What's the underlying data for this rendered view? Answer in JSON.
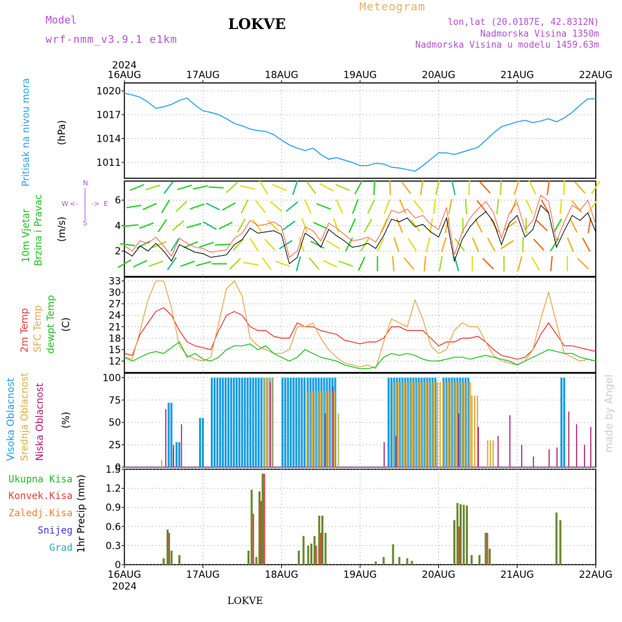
{
  "header": {
    "model_label": "Model",
    "model_name": "wrf-nmm_v3.9.1 e1km",
    "station": "LOKVE",
    "meteogram_label": "Meteogram",
    "coords": "lon,lat (20.0187E, 42.8312N)",
    "elevation": "Nadmorska Visina 1350m",
    "model_elevation": "Nadmorska Visina u modelu 1459.63m",
    "footer_station": "LOKVE",
    "watermark": "made by Angel"
  },
  "colors": {
    "pressure": "#2ba3e6",
    "wind_label": "#20c020",
    "temp_2m": "#e83a3a",
    "temp_sfc": "#e0aa50",
    "dewpoint": "#20c020",
    "cloud_high": "#1a9fe0",
    "cloud_mid": "#dcae44",
    "cloud_low": "#b0186e",
    "precip_total": "#6a8a30",
    "precip_conv": "#e83a3a",
    "snow": "#3a3ad0",
    "grad": "#20b0b0",
    "purple": "#b050d0"
  },
  "chart_data": [
    {
      "type": "line",
      "id": "pressure",
      "ylabel": "Pritisak na nivou mora",
      "unit": "(hPa)",
      "ylim": [
        1009,
        1021
      ],
      "yticks": [
        1011,
        1014,
        1017,
        1020
      ],
      "x_year_top": "2024",
      "x_year_bottom": "2024",
      "x_ticks": [
        "16AUG",
        "17AUG",
        "18AUG",
        "19AUG",
        "20AUG",
        "21AUG",
        "22AUG"
      ],
      "x_days": [
        0,
        6
      ],
      "grid": true,
      "x": [
        0,
        0.1,
        0.2,
        0.3,
        0.4,
        0.5,
        0.6,
        0.7,
        0.8,
        0.9,
        1.0,
        1.1,
        1.2,
        1.3,
        1.4,
        1.5,
        1.6,
        1.7,
        1.8,
        1.9,
        2.0,
        2.1,
        2.2,
        2.3,
        2.4,
        2.5,
        2.6,
        2.7,
        2.8,
        2.9,
        3.0,
        3.1,
        3.2,
        3.3,
        3.4,
        3.5,
        3.6,
        3.7,
        3.8,
        3.9,
        4.0,
        4.1,
        4.2,
        4.3,
        4.4,
        4.5,
        4.6,
        4.7,
        4.8,
        4.9,
        5.0,
        5.1,
        5.2,
        5.3,
        5.4,
        5.5,
        5.6,
        5.7,
        5.8,
        5.9,
        6.0
      ],
      "values": [
        1019.7,
        1019.5,
        1019.2,
        1018.6,
        1017.8,
        1018.0,
        1018.3,
        1018.8,
        1019.1,
        1018.2,
        1017.5,
        1017.3,
        1017.0,
        1016.5,
        1015.9,
        1015.6,
        1015.2,
        1015.0,
        1014.9,
        1014.5,
        1013.8,
        1013.2,
        1012.8,
        1012.5,
        1012.8,
        1012.0,
        1011.4,
        1011.6,
        1011.3,
        1011.0,
        1010.6,
        1010.6,
        1010.9,
        1010.8,
        1010.4,
        1010.3,
        1010.1,
        1009.9,
        1010.6,
        1011.4,
        1012.2,
        1012.2,
        1012.0,
        1012.3,
        1012.6,
        1012.9,
        1013.8,
        1014.7,
        1015.5,
        1015.8,
        1016.1,
        1016.3,
        1016.0,
        1016.2,
        1016.5,
        1016.1,
        1016.6,
        1017.3,
        1018.2,
        1019.0,
        1019.0
      ]
    },
    {
      "type": "line",
      "id": "wind",
      "ylabel": "10m Vjetar Brzina i Pravac",
      "unit": "(m/s)",
      "compass": {
        "n": "N",
        "s": "S",
        "e": "E",
        "w": "W"
      },
      "ylim": [
        0,
        7.5
      ],
      "yticks": [
        2,
        4,
        6
      ],
      "series": [
        {
          "name": "speed",
          "values": [
            2.0,
            1.6,
            2.4,
            2.0,
            2.6,
            2.0,
            1.2,
            2.5,
            2.2,
            1.9,
            1.8,
            1.5,
            1.6,
            1.7,
            2.5,
            2.9,
            3.8,
            3.4,
            3.5,
            3.6,
            3.3,
            1.0,
            1.5,
            3.4,
            3.0,
            2.3,
            3.7,
            3.2,
            2.8,
            2.3,
            2.4,
            2.6,
            2.2,
            3.2,
            4.5,
            4.3,
            4.6,
            3.9,
            4.1,
            3.5,
            3.1,
            4.6,
            1.2,
            2.9,
            3.9,
            4.6,
            5.1,
            4.3,
            2.5,
            4.2,
            4.8,
            3.1,
            3.7,
            5.6,
            5.0,
            2.3,
            3.6,
            4.8,
            4.4,
            5.0,
            3.5
          ]
        },
        {
          "name": "gust",
          "values": [
            2.4,
            2.0,
            2.8,
            2.6,
            3.1,
            2.4,
            1.6,
            3.0,
            2.6,
            2.3,
            2.2,
            1.9,
            2.0,
            2.1,
            3.0,
            3.4,
            4.4,
            4.0,
            4.1,
            4.3,
            3.9,
            1.5,
            2.0,
            3.9,
            3.6,
            2.8,
            4.2,
            3.8,
            3.3,
            2.8,
            2.9,
            3.1,
            2.7,
            3.8,
            5.2,
            5.0,
            5.3,
            4.6,
            4.8,
            4.1,
            3.7,
            5.4,
            1.7,
            3.5,
            4.6,
            5.3,
            5.9,
            5.0,
            3.0,
            5.0,
            5.8,
            3.7,
            4.4,
            6.4,
            5.9,
            2.8,
            4.3,
            5.6,
            5.2,
            6.0,
            4.1
          ]
        }
      ],
      "direction_deg": [
        260,
        250,
        240,
        250,
        260,
        230,
        200,
        220,
        250,
        260,
        270,
        280,
        260,
        240,
        230,
        220,
        300,
        310,
        320,
        315,
        300,
        250,
        180,
        330,
        320,
        300,
        310,
        320,
        280,
        200,
        210,
        220,
        200,
        190,
        170,
        160,
        150,
        160,
        170,
        180,
        190,
        200,
        180,
        160,
        170,
        150,
        140,
        160,
        200,
        220,
        190,
        180,
        160,
        150,
        170,
        200,
        180,
        160,
        150,
        170,
        200
      ]
    },
    {
      "type": "line",
      "id": "temperature",
      "ylabels": [
        "2m Temp",
        "SFC Temp",
        "dewpt Temp"
      ],
      "unit": "(C)",
      "ylim": [
        9,
        34
      ],
      "yticks": [
        12,
        15,
        18,
        21,
        24,
        27,
        30,
        33
      ],
      "series": [
        {
          "name": "2m Temp",
          "values": [
            14,
            13.5,
            19,
            22,
            25,
            26,
            24,
            20,
            17,
            16,
            15.5,
            15,
            20,
            24,
            25,
            24,
            21,
            20,
            20,
            18.5,
            18,
            18,
            22,
            21,
            21,
            20,
            19.5,
            19,
            17.5,
            17,
            16.5,
            17,
            17,
            18,
            21,
            21,
            20,
            20,
            20,
            18,
            16,
            17,
            17,
            18,
            18,
            18.5,
            17,
            15,
            13.5,
            13,
            12.5,
            13,
            15,
            19,
            22,
            19,
            16,
            16,
            15.5,
            15,
            14.5
          ]
        },
        {
          "name": "SFC Temp",
          "values": [
            13,
            12.5,
            20,
            28,
            33,
            33,
            26,
            16,
            13.5,
            12.5,
            12,
            13,
            22,
            31,
            33,
            29,
            18,
            16,
            15,
            14,
            14,
            15,
            21,
            21,
            22,
            18,
            15,
            13,
            11.5,
            11,
            10.5,
            11,
            10,
            17,
            23,
            22,
            21,
            28,
            23,
            16,
            14,
            15,
            20,
            22,
            21,
            21,
            17,
            13.5,
            12,
            11.5,
            11,
            12,
            15,
            23,
            30,
            22,
            14,
            13,
            12,
            12.5,
            12
          ]
        },
        {
          "name": "dewpt Temp",
          "values": [
            13,
            12,
            13,
            14,
            14.5,
            14,
            15.5,
            17,
            13,
            14,
            12.5,
            12,
            13,
            15,
            16,
            16,
            16.5,
            15,
            16,
            14,
            13,
            12,
            13,
            15,
            14,
            13,
            12.5,
            12,
            11,
            10.5,
            10,
            10,
            10.5,
            13,
            14,
            13.5,
            14,
            13.5,
            12.5,
            12,
            12,
            12.5,
            13,
            13,
            12.5,
            13,
            13.5,
            13,
            12.5,
            12,
            11,
            12,
            13,
            14,
            15,
            14.5,
            14,
            14,
            13,
            12.5,
            12
          ]
        }
      ]
    },
    {
      "type": "bar",
      "id": "clouds",
      "ylabels": [
        "Visoka Oblacnost",
        "Srednja Oblacnost",
        "Niska Oblacnost"
      ],
      "unit": "(%)",
      "ylim": [
        0,
        105
      ],
      "yticks": [
        0,
        25,
        50,
        75,
        100
      ],
      "series": [
        {
          "name": "Visoka Oblacnost",
          "blocks": [
            [
              0.55,
              0.6,
              72
            ],
            [
              0.65,
              0.7,
              28
            ],
            [
              0.95,
              1.0,
              55
            ],
            [
              1.1,
              1.9,
              100
            ],
            [
              2.0,
              2.3,
              100
            ],
            [
              2.32,
              2.7,
              100
            ],
            [
              3.35,
              3.95,
              100
            ],
            [
              4.05,
              4.4,
              100
            ],
            [
              5.55,
              5.6,
              100
            ]
          ]
        },
        {
          "name": "Srednja Oblacnost",
          "blocks": [
            [
              0.45,
              0.5,
              8
            ],
            [
              0.6,
              0.65,
              20
            ],
            [
              1.75,
              1.9,
              100
            ],
            [
              2.3,
              2.7,
              85
            ],
            [
              2.7,
              2.75,
              60
            ],
            [
              3.4,
              4.4,
              95
            ],
            [
              4.4,
              4.5,
              80
            ],
            [
              4.6,
              4.7,
              30
            ]
          ]
        },
        {
          "name": "Niska Oblacnost",
          "bars": [
            [
              0.52,
              65
            ],
            [
              0.62,
              25
            ],
            [
              0.72,
              48
            ],
            [
              1.85,
              95
            ],
            [
              2.55,
              60
            ],
            [
              2.65,
              90
            ],
            [
              3.3,
              28
            ],
            [
              3.45,
              35
            ],
            [
              4.25,
              60
            ],
            [
              4.5,
              45
            ],
            [
              4.75,
              35
            ],
            [
              4.9,
              58
            ],
            [
              5.05,
              25
            ],
            [
              5.2,
              12
            ],
            [
              5.4,
              20
            ],
            [
              5.5,
              22
            ],
            [
              5.65,
              62
            ],
            [
              5.75,
              48
            ],
            [
              5.85,
              25
            ],
            [
              5.93,
              45
            ]
          ]
        }
      ]
    },
    {
      "type": "bar",
      "id": "precip",
      "legend": [
        "Ukupna Kisa",
        "Konvek.Kisa",
        "Zaledj.Kisa",
        "Snijeg",
        "Grad"
      ],
      "ylabel": "1hr Precip",
      "unit": "(mm)",
      "ylim": [
        0,
        1.5
      ],
      "yticks": [
        0,
        0.3,
        0.6,
        0.9,
        1.2,
        1.5
      ],
      "ytick_labels": [
        "0",
        "0.3",
        "0.6",
        "0.9",
        "1.2",
        "1.5"
      ],
      "series": [
        {
          "name": "Ukupna Kisa",
          "bars": [
            [
              0.5,
              0.1
            ],
            [
              0.55,
              0.55
            ],
            [
              0.6,
              0.22
            ],
            [
              0.7,
              0.15
            ],
            [
              1.58,
              0.22
            ],
            [
              1.62,
              1.18
            ],
            [
              1.68,
              0.12
            ],
            [
              1.72,
              1.15
            ],
            [
              1.76,
              1.43
            ],
            [
              2.22,
              0.22
            ],
            [
              2.28,
              0.45
            ],
            [
              2.34,
              0.3
            ],
            [
              2.38,
              0.33
            ],
            [
              2.42,
              0.45
            ],
            [
              2.48,
              0.77
            ],
            [
              2.52,
              0.77
            ],
            [
              2.56,
              0.5
            ],
            [
              3.2,
              0.05
            ],
            [
              3.3,
              0.12
            ],
            [
              3.42,
              0.32
            ],
            [
              3.5,
              0.12
            ],
            [
              3.6,
              0.1
            ],
            [
              3.66,
              0.06
            ],
            [
              4.2,
              0.7
            ],
            [
              4.24,
              0.97
            ],
            [
              4.28,
              0.95
            ],
            [
              4.32,
              0.94
            ],
            [
              4.36,
              0.93
            ],
            [
              4.42,
              0.15
            ],
            [
              4.52,
              0.15
            ],
            [
              4.6,
              0.5
            ],
            [
              4.65,
              0.25
            ],
            [
              5.5,
              0.82
            ],
            [
              5.55,
              0.7
            ]
          ]
        },
        {
          "name": "Konvek.Kisa",
          "bars": [
            [
              0.55,
              0.5
            ],
            [
              1.62,
              0.8
            ],
            [
              1.72,
              1.0
            ],
            [
              1.76,
              1.43
            ],
            [
              2.42,
              0.3
            ],
            [
              2.48,
              0.5
            ],
            [
              4.24,
              0.6
            ],
            [
              4.6,
              0.5
            ]
          ]
        }
      ]
    }
  ]
}
